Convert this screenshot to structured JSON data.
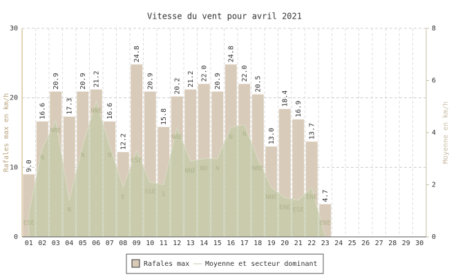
{
  "chart_data": {
    "type": "bar",
    "title": "Vitesse du vent pour avril 2021",
    "y_label": "Rafales max en km/h",
    "y2_label": "Moyenne en km/h",
    "categories": [
      "01",
      "02",
      "03",
      "04",
      "05",
      "06",
      "07",
      "08",
      "09",
      "10",
      "11",
      "12",
      "13",
      "14",
      "15",
      "16",
      "17",
      "18",
      "19",
      "20",
      "21",
      "22",
      "23",
      "24",
      "25",
      "26",
      "27",
      "28",
      "29",
      "30"
    ],
    "ylim": [
      0,
      30
    ],
    "yticks": [
      0,
      10,
      20,
      30
    ],
    "y2lim": [
      0,
      8
    ],
    "y2ticks": [
      0,
      2,
      4,
      6,
      8
    ],
    "grid": true,
    "series": [
      {
        "name": "Rafales max",
        "color": "#d9cbb9",
        "values": [
          9.0,
          16.6,
          20.9,
          17.3,
          20.9,
          21.2,
          16.6,
          12.2,
          24.8,
          20.9,
          15.8,
          20.2,
          21.2,
          22.0,
          20.9,
          24.8,
          22.0,
          20.5,
          13.0,
          18.4,
          16.9,
          13.7,
          4.7,
          null,
          null,
          null,
          null,
          null,
          null,
          null
        ],
        "value_labels": [
          "9.0",
          "16.6",
          "20.9",
          "17.3",
          "20.9",
          "21.2",
          "16.6",
          "12.2",
          "24.8",
          "20.9",
          "15.8",
          "20.2",
          "21.2",
          "22.0",
          "20.9",
          "24.8",
          "22.0",
          "20.5",
          "13.0",
          "18.4",
          "16.9",
          "13.7",
          "4.7",
          null,
          null,
          null,
          null,
          null,
          null,
          null
        ]
      },
      {
        "name": "Moyenne et secteur dominant",
        "type": "area",
        "axis": "y2",
        "color": "#c3caa8",
        "values": [
          0.9,
          3.4,
          4.45,
          1.4,
          3.5,
          5.2,
          3.5,
          1.9,
          3.3,
          2.1,
          2.0,
          4.2,
          2.9,
          3.0,
          3.0,
          4.2,
          4.3,
          3.0,
          1.9,
          1.5,
          1.4,
          1.9,
          0,
          null,
          null,
          null,
          null,
          null,
          null,
          null
        ],
        "directions": [
          "ESE",
          "N",
          "NNE",
          "N",
          "N",
          "NNE",
          "N",
          "E",
          "ESE",
          "SSE",
          "S",
          "NNE",
          "NNE",
          "NO",
          "N",
          "N",
          "N",
          "NNE",
          "NNE",
          "ENE",
          "ESE",
          "ENE",
          "ENE",
          null,
          null,
          null,
          null,
          null,
          null,
          null
        ]
      }
    ]
  }
}
